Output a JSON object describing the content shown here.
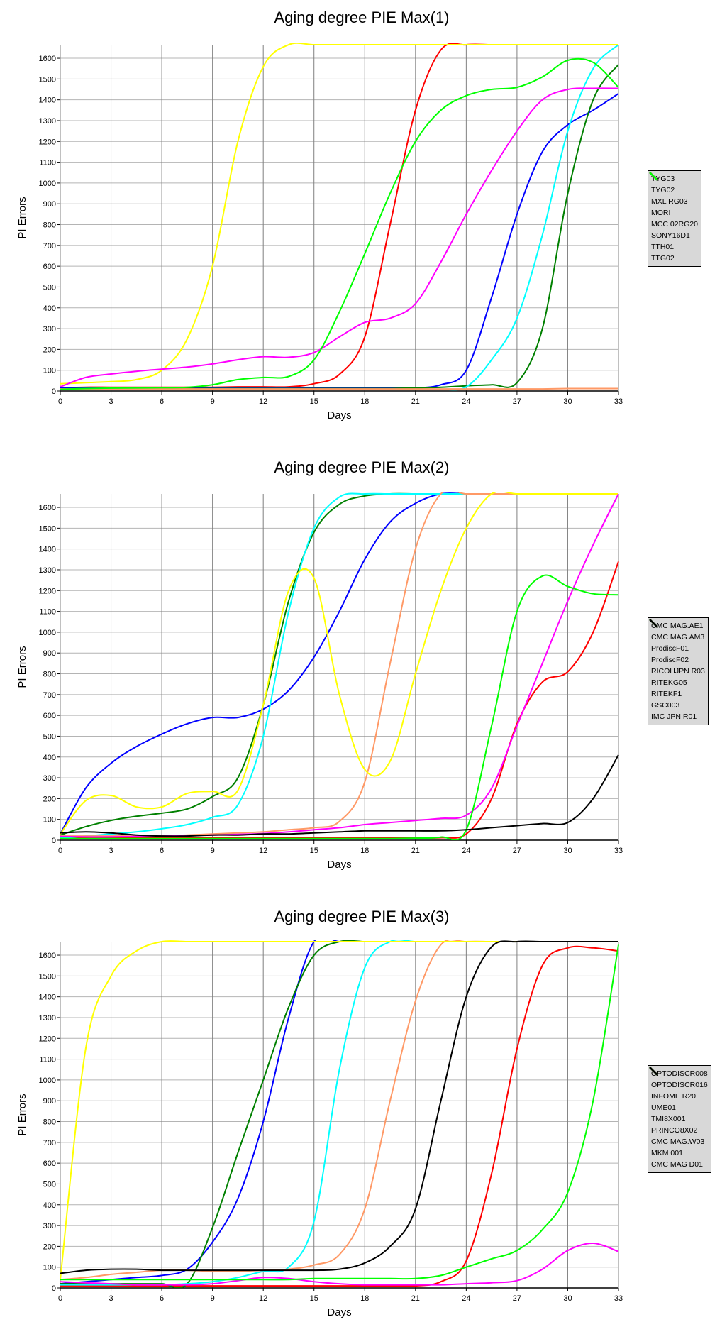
{
  "chart_data": [
    {
      "type": "line",
      "title": "Aging degree PIE Max(1)",
      "xlabel": "Days",
      "ylabel": "PI Errors",
      "xlim": [
        0,
        33
      ],
      "ylim": [
        0,
        1665
      ],
      "xticks": [
        0,
        3,
        6,
        9,
        12,
        15,
        18,
        21,
        24,
        27,
        30,
        33
      ],
      "yticks": [
        0,
        100,
        200,
        300,
        400,
        500,
        600,
        700,
        800,
        900,
        1000,
        1100,
        1200,
        1300,
        1400,
        1500,
        1600
      ],
      "grid": true,
      "legend": "right",
      "x": [
        0,
        1.5,
        3,
        4.5,
        6,
        7.5,
        9,
        10.5,
        12,
        13.5,
        15,
        16.5,
        18,
        19.5,
        21,
        22.5,
        24,
        25.5,
        27,
        28.5,
        30,
        31.5,
        33
      ],
      "series": [
        {
          "name": "TYG03",
          "color": "#ff0000",
          "values": [
            15,
            18,
            18,
            18,
            18,
            18,
            18,
            20,
            20,
            20,
            35,
            80,
            260,
            800,
            1350,
            1640,
            1665,
            1665,
            1665,
            1665,
            1665,
            1665,
            1665
          ]
        },
        {
          "name": "TYG02",
          "color": "#0000ff",
          "values": [
            15,
            15,
            15,
            15,
            15,
            15,
            15,
            15,
            15,
            15,
            15,
            15,
            15,
            15,
            15,
            30,
            100,
            450,
            850,
            1150,
            1280,
            1350,
            1430
          ]
        },
        {
          "name": "MXL RG03",
          "color": "#008000",
          "values": [
            10,
            12,
            12,
            12,
            12,
            12,
            12,
            12,
            12,
            12,
            12,
            12,
            12,
            12,
            15,
            18,
            25,
            30,
            40,
            300,
            950,
            1400,
            1570
          ]
        },
        {
          "name": "MORI",
          "color": "#00ffff",
          "values": [
            8,
            8,
            8,
            8,
            8,
            8,
            8,
            8,
            8,
            8,
            8,
            8,
            8,
            8,
            8,
            8,
            20,
            150,
            350,
            750,
            1250,
            1550,
            1665
          ]
        },
        {
          "name": "MCC 02RG20",
          "color": "#ff9966",
          "values": [
            10,
            10,
            10,
            10,
            10,
            10,
            10,
            10,
            10,
            10,
            10,
            10,
            10,
            10,
            10,
            10,
            10,
            10,
            10,
            10,
            12,
            12,
            12
          ]
        },
        {
          "name": "SONY16D1",
          "color": "#ffff00",
          "values": [
            35,
            40,
            45,
            55,
            100,
            250,
            600,
            1200,
            1560,
            1665,
            1665,
            1665,
            1665,
            1665,
            1665,
            1665,
            1665,
            1665,
            1665,
            1665,
            1665,
            1665,
            1665
          ]
        },
        {
          "name": "TTH01",
          "color": "#ff00ff",
          "values": [
            20,
            65,
            82,
            95,
            105,
            115,
            130,
            150,
            165,
            162,
            185,
            260,
            330,
            350,
            420,
            620,
            850,
            1060,
            1250,
            1400,
            1450,
            1455,
            1455
          ]
        },
        {
          "name": "TTG02",
          "color": "#00ff00",
          "values": [
            8,
            12,
            14,
            15,
            16,
            18,
            30,
            55,
            65,
            70,
            150,
            380,
            660,
            950,
            1200,
            1350,
            1420,
            1450,
            1460,
            1510,
            1590,
            1580,
            1460
          ]
        }
      ]
    },
    {
      "type": "line",
      "title": "Aging degree PIE Max(2)",
      "xlabel": "Days",
      "ylabel": "PI Errors",
      "xlim": [
        0,
        33
      ],
      "ylim": [
        0,
        1665
      ],
      "xticks": [
        0,
        3,
        6,
        9,
        12,
        15,
        18,
        21,
        24,
        27,
        30,
        33
      ],
      "yticks": [
        0,
        100,
        200,
        300,
        400,
        500,
        600,
        700,
        800,
        900,
        1000,
        1100,
        1200,
        1300,
        1400,
        1500,
        1600
      ],
      "grid": true,
      "legend": "right",
      "x": [
        0,
        1.5,
        3,
        4.5,
        6,
        7.5,
        9,
        10.5,
        12,
        13.5,
        15,
        16.5,
        18,
        19.5,
        21,
        22.5,
        24,
        25.5,
        27,
        28.5,
        30,
        31.5,
        33
      ],
      "series": [
        {
          "name": "CMC MAG.AE1",
          "color": "#ff0000",
          "values": [
            15,
            12,
            12,
            12,
            12,
            12,
            12,
            12,
            12,
            12,
            12,
            12,
            12,
            12,
            12,
            12,
            30,
            200,
            560,
            760,
            810,
            1000,
            1340
          ]
        },
        {
          "name": "CMC MAG.AM3",
          "color": "#0000ff",
          "values": [
            30,
            250,
            370,
            450,
            510,
            560,
            590,
            590,
            630,
            720,
            880,
            1100,
            1350,
            1530,
            1620,
            1665,
            1665,
            1665,
            1665,
            1665,
            1665,
            1665,
            1665
          ]
        },
        {
          "name": "ProdiscF01",
          "color": "#008000",
          "values": [
            25,
            65,
            95,
            115,
            130,
            150,
            210,
            300,
            650,
            1150,
            1480,
            1615,
            1655,
            1665,
            1665,
            1665,
            1665,
            1665,
            1665,
            1665,
            1665,
            1665,
            1665
          ]
        },
        {
          "name": "ProdiscF02",
          "color": "#00ffff",
          "values": [
            10,
            20,
            30,
            40,
            55,
            75,
            110,
            170,
            500,
            1100,
            1500,
            1650,
            1665,
            1665,
            1665,
            1665,
            1665,
            1665,
            1665,
            1665,
            1665,
            1665,
            1665
          ]
        },
        {
          "name": "RICOHJPN R03",
          "color": "#ff9966",
          "values": [
            20,
            20,
            20,
            20,
            20,
            25,
            30,
            35,
            40,
            50,
            60,
            90,
            280,
            850,
            1400,
            1665,
            1665,
            1665,
            1665,
            1665,
            1665,
            1665,
            1665
          ]
        },
        {
          "name": "RITEKG05",
          "color": "#ffff00",
          "values": [
            30,
            190,
            215,
            160,
            160,
            225,
            235,
            240,
            650,
            1200,
            1260,
            700,
            340,
            380,
            800,
            1200,
            1500,
            1665,
            1665,
            1665,
            1665,
            1665,
            1665
          ]
        },
        {
          "name": "RITEKF1",
          "color": "#ff00ff",
          "values": [
            18,
            16,
            16,
            18,
            20,
            22,
            25,
            28,
            32,
            40,
            50,
            60,
            75,
            85,
            95,
            105,
            120,
            250,
            550,
            850,
            1150,
            1420,
            1665
          ]
        },
        {
          "name": "GSC003",
          "color": "#00ff00",
          "values": [
            8,
            8,
            8,
            8,
            8,
            8,
            8,
            8,
            8,
            8,
            8,
            8,
            8,
            8,
            10,
            15,
            50,
            550,
            1100,
            1270,
            1220,
            1185,
            1180
          ]
        },
        {
          "name": "IMC JPN R01",
          "color": "#000000",
          "values": [
            35,
            40,
            35,
            25,
            20,
            20,
            25,
            25,
            30,
            30,
            35,
            40,
            45,
            45,
            45,
            45,
            50,
            60,
            70,
            80,
            85,
            200,
            410
          ]
        }
      ]
    },
    {
      "type": "line",
      "title": "Aging degree PIE Max(3)",
      "xlabel": "Days",
      "ylabel": "PI Errors",
      "xlim": [
        0,
        33
      ],
      "ylim": [
        0,
        1665
      ],
      "xticks": [
        0,
        3,
        6,
        9,
        12,
        15,
        18,
        21,
        24,
        27,
        30,
        33
      ],
      "yticks": [
        0,
        100,
        200,
        300,
        400,
        500,
        600,
        700,
        800,
        900,
        1000,
        1100,
        1200,
        1300,
        1400,
        1500,
        1600
      ],
      "grid": true,
      "legend": "right",
      "x": [
        0,
        1.5,
        3,
        4.5,
        6,
        7.5,
        9,
        10.5,
        12,
        13.5,
        15,
        16.5,
        18,
        19.5,
        21,
        22.5,
        24,
        25.5,
        27,
        28.5,
        30,
        31.5,
        33
      ],
      "series": [
        {
          "name": "OPTODISCR008",
          "color": "#ff0000",
          "values": [
            10,
            10,
            10,
            10,
            10,
            10,
            10,
            10,
            10,
            10,
            10,
            10,
            10,
            10,
            10,
            30,
            130,
            550,
            1150,
            1550,
            1635,
            1635,
            1620
          ]
        },
        {
          "name": "OPTODISCR016",
          "color": "#0000ff",
          "values": [
            20,
            30,
            40,
            50,
            60,
            90,
            220,
            430,
            800,
            1300,
            1665,
            1665,
            1665,
            1665,
            1665,
            1665,
            1665,
            1665,
            1665,
            1665,
            1665,
            1665,
            1665
          ]
        },
        {
          "name": "INFOME R20",
          "color": "#008000",
          "values": [
            20,
            20,
            20,
            20,
            20,
            20,
            290,
            650,
            1000,
            1350,
            1600,
            1665,
            1665,
            1665,
            1665,
            1665,
            1665,
            1665,
            1665,
            1665,
            1665,
            1665,
            1665
          ]
        },
        {
          "name": "UME01",
          "color": "#00ffff",
          "values": [
            15,
            15,
            15,
            15,
            15,
            20,
            30,
            50,
            80,
            100,
            320,
            1050,
            1540,
            1665,
            1665,
            1665,
            1665,
            1665,
            1665,
            1665,
            1665,
            1665,
            1665
          ]
        },
        {
          "name": "TMI8X001",
          "color": "#ff9966",
          "values": [
            40,
            50,
            65,
            75,
            85,
            85,
            80,
            80,
            85,
            90,
            110,
            160,
            380,
            900,
            1380,
            1650,
            1665,
            1665,
            1665,
            1665,
            1665,
            1665,
            1665
          ]
        },
        {
          "name": "PRINCO8X02",
          "color": "#ffff00",
          "values": [
            40,
            1150,
            1500,
            1620,
            1665,
            1665,
            1665,
            1665,
            1665,
            1665,
            1665,
            1665,
            1665,
            1665,
            1665,
            1665,
            1665,
            1665,
            1665,
            1665,
            1665,
            1665,
            1665
          ]
        },
        {
          "name": "CMC MAG.W03",
          "color": "#ff00ff",
          "values": [
            30,
            25,
            20,
            15,
            15,
            15,
            20,
            35,
            50,
            45,
            30,
            20,
            15,
            15,
            15,
            15,
            20,
            25,
            35,
            90,
            180,
            215,
            175
          ]
        },
        {
          "name": "MKM 001",
          "color": "#00ff00",
          "values": [
            40,
            40,
            40,
            40,
            40,
            40,
            40,
            40,
            40,
            40,
            45,
            45,
            45,
            45,
            45,
            60,
            100,
            140,
            180,
            280,
            460,
            900,
            1650
          ]
        },
        {
          "name": "CMC MAG D01",
          "color": "#000000",
          "values": [
            70,
            85,
            90,
            90,
            85,
            85,
            85,
            85,
            85,
            85,
            85,
            90,
            120,
            200,
            380,
            900,
            1400,
            1640,
            1665,
            1665,
            1665,
            1665,
            1665
          ]
        }
      ]
    }
  ]
}
